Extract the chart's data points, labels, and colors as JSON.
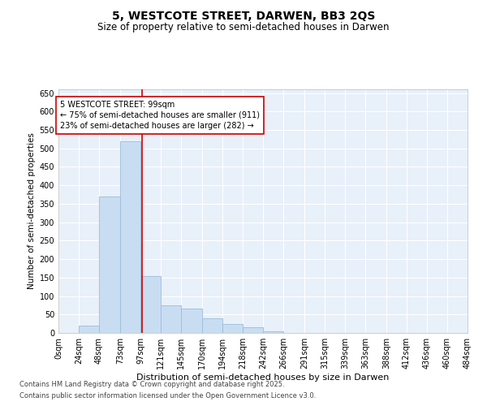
{
  "title": "5, WESTCOTE STREET, DARWEN, BB3 2QS",
  "subtitle": "Size of property relative to semi-detached houses in Darwen",
  "xlabel": "Distribution of semi-detached houses by size in Darwen",
  "ylabel": "Number of semi-detached properties",
  "annotation_title": "5 WESTCOTE STREET: 99sqm",
  "annotation_line1": "← 75% of semi-detached houses are smaller (911)",
  "annotation_line2": "23% of semi-detached houses are larger (282) →",
  "footnote1": "Contains HM Land Registry data © Crown copyright and database right 2025.",
  "footnote2": "Contains public sector information licensed under the Open Government Licence v3.0.",
  "bin_edges": [
    0,
    24,
    48,
    73,
    97,
    121,
    145,
    170,
    194,
    218,
    242,
    266,
    291,
    315,
    339,
    363,
    388,
    412,
    436,
    460,
    484
  ],
  "bin_labels": [
    "0sqm",
    "24sqm",
    "48sqm",
    "73sqm",
    "97sqm",
    "121sqm",
    "145sqm",
    "170sqm",
    "194sqm",
    "218sqm",
    "242sqm",
    "266sqm",
    "291sqm",
    "315sqm",
    "339sqm",
    "363sqm",
    "388sqm",
    "412sqm",
    "436sqm",
    "460sqm",
    "484sqm"
  ],
  "counts": [
    0,
    20,
    370,
    520,
    155,
    75,
    65,
    40,
    25,
    15,
    5,
    1,
    0,
    0,
    0,
    1,
    0,
    0,
    0,
    1
  ],
  "bar_color": "#c9ddf2",
  "bar_edge_color": "#9bbdd8",
  "vline_color": "#cc0000",
  "vline_x": 99,
  "annotation_box_color": "#cc0000",
  "background_color": "#e8f0fa",
  "ylim": [
    0,
    660
  ],
  "yticks": [
    0,
    50,
    100,
    150,
    200,
    250,
    300,
    350,
    400,
    450,
    500,
    550,
    600,
    650
  ],
  "title_fontsize": 10,
  "subtitle_fontsize": 8.5,
  "ylabel_fontsize": 7.5,
  "xlabel_fontsize": 8,
  "tick_fontsize": 7,
  "annot_fontsize": 7,
  "footnote_fontsize": 6
}
